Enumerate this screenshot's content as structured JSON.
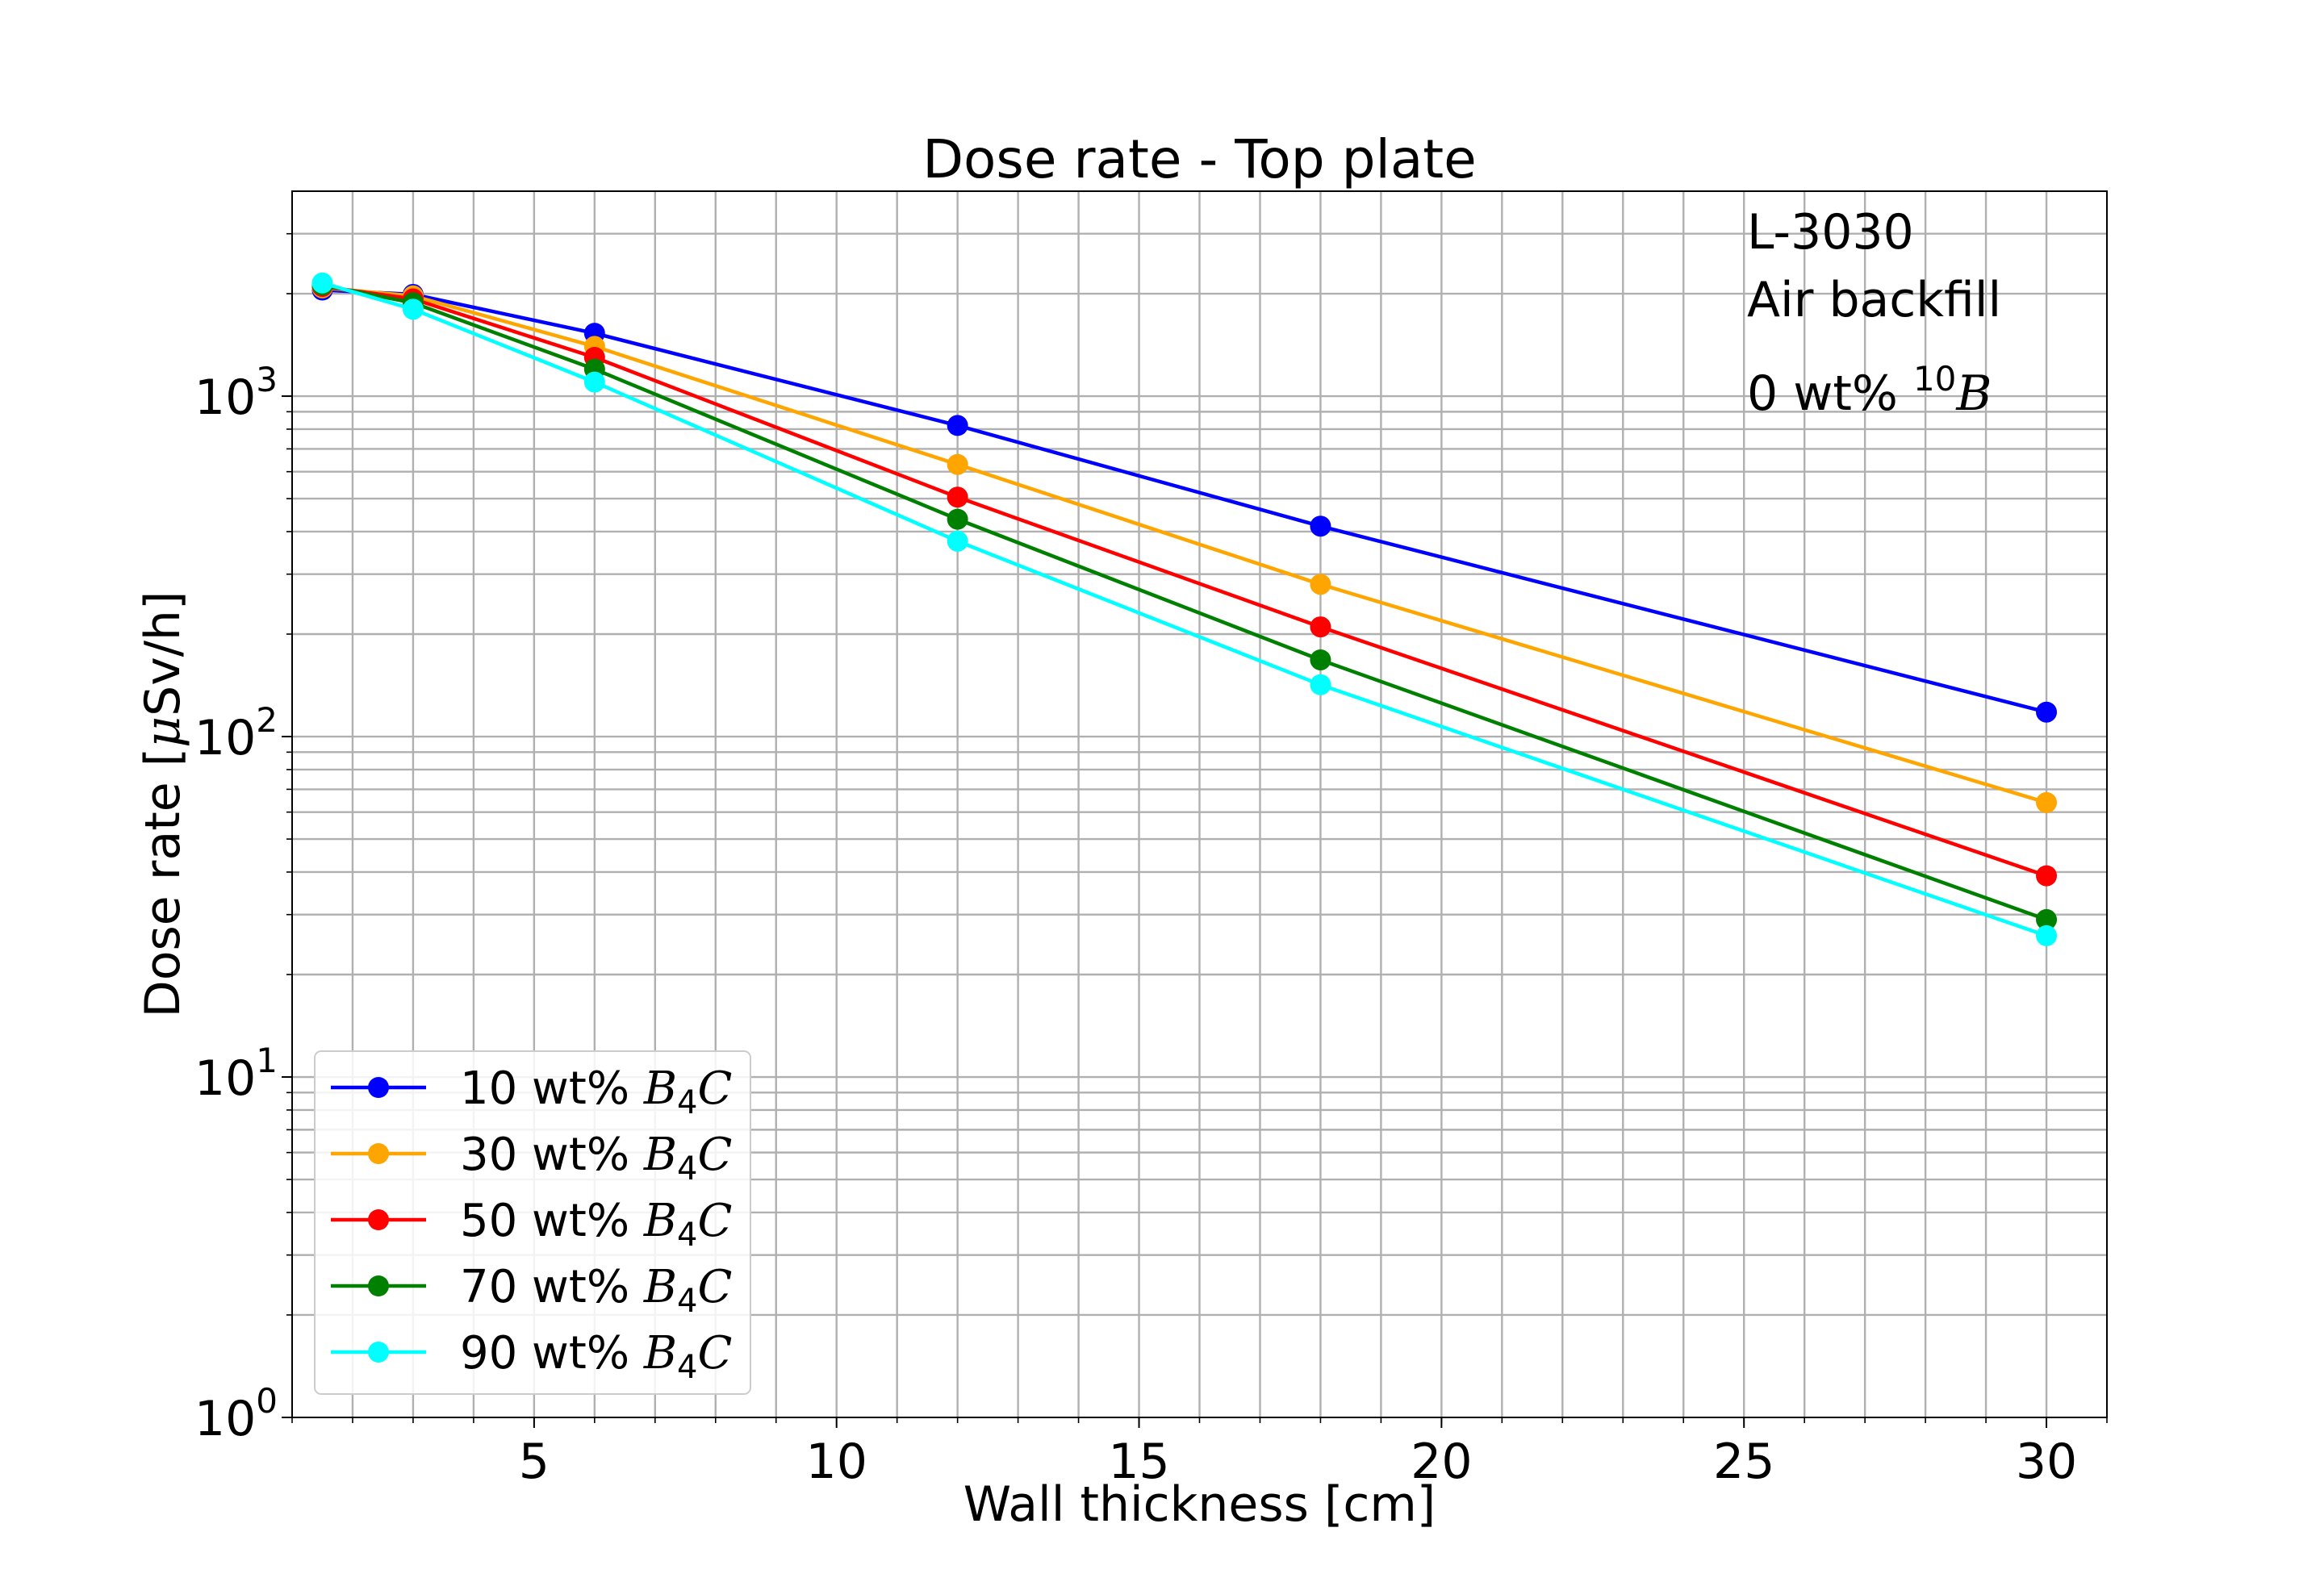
{
  "chart_data": {
    "type": "line",
    "title": "Dose rate - Top plate",
    "xlabel": "Wall thickness [cm]",
    "ylabel": {
      "pre": "Dose rate [",
      "mu": "μ",
      "post": "Sv/h]"
    },
    "xlim": [
      1.0,
      31.0
    ],
    "ylim": [
      1,
      4000
    ],
    "yscale": "log",
    "grid": true,
    "x_ticks": [
      {
        "value": 5,
        "label": "5"
      },
      {
        "value": 10,
        "label": "10"
      },
      {
        "value": 15,
        "label": "15"
      },
      {
        "value": 20,
        "label": "20"
      },
      {
        "value": 25,
        "label": "25"
      },
      {
        "value": 30,
        "label": "30"
      }
    ],
    "x_minor_step": 1,
    "y_ticks": [
      {
        "value": 1,
        "base": "10",
        "exp": "0"
      },
      {
        "value": 10,
        "base": "10",
        "exp": "1"
      },
      {
        "value": 100,
        "base": "10",
        "exp": "2"
      },
      {
        "value": 1000,
        "base": "10",
        "exp": "3"
      }
    ],
    "annotations": [
      {
        "text": "L-3030"
      },
      {
        "text": "Air backfill"
      },
      {
        "text": "0 wt% ",
        "sup": "10",
        "italic": "B"
      }
    ],
    "legend": {
      "loc": "lower-left",
      "prefix": "wt% ",
      "b": "B",
      "sub": "4",
      "c": "C"
    },
    "x": [
      1.5,
      3,
      6,
      12,
      18,
      30
    ],
    "series": [
      {
        "name": "10",
        "color": "#0000ff",
        "values": [
          2050,
          1990,
          1530,
          820,
          415,
          118
        ]
      },
      {
        "name": "30",
        "color": "#ffa500",
        "values": [
          2080,
          1970,
          1400,
          630,
          280,
          64
        ]
      },
      {
        "name": "50",
        "color": "#ff0000",
        "values": [
          2100,
          1930,
          1300,
          505,
          210,
          39
        ]
      },
      {
        "name": "70",
        "color": "#008000",
        "values": [
          2120,
          1880,
          1200,
          435,
          168,
          29
        ]
      },
      {
        "name": "90",
        "color": "#00ffff",
        "values": [
          2150,
          1800,
          1100,
          375,
          142,
          26
        ]
      }
    ]
  }
}
